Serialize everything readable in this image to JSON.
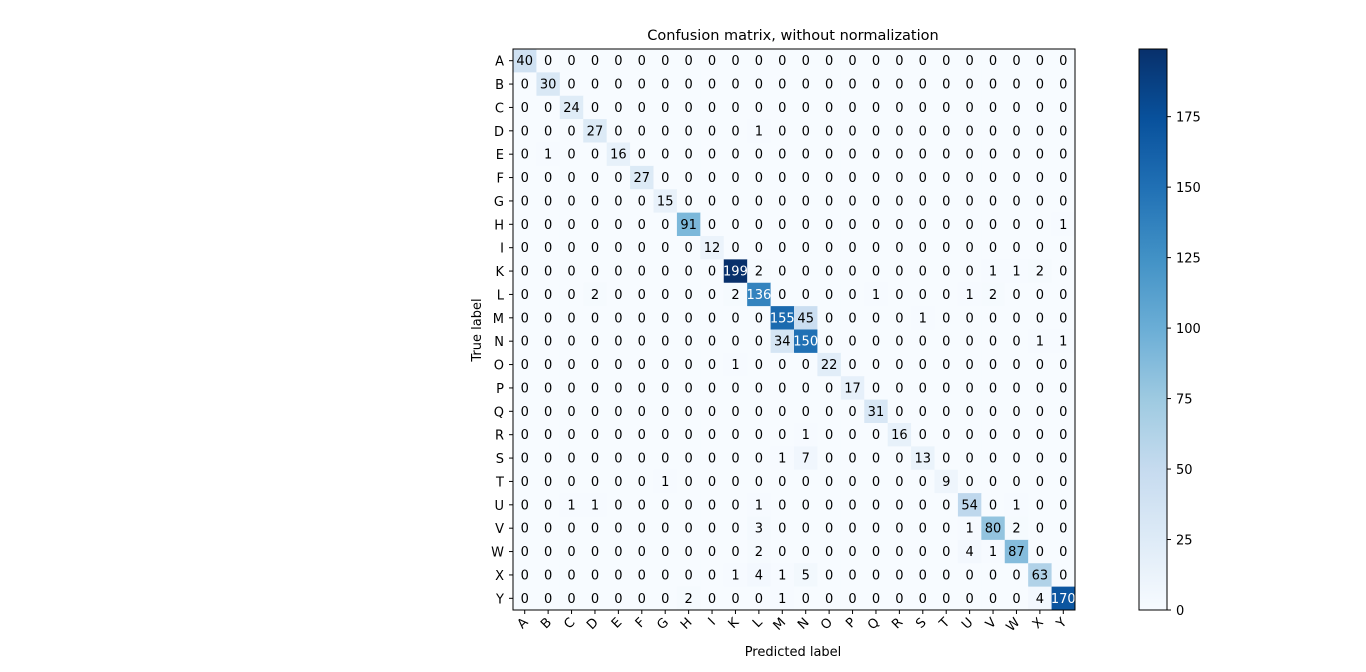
{
  "chart_data": {
    "type": "heatmap",
    "title": "Confusion matrix, without normalization",
    "xlabel": "Predicted label",
    "ylabel": "True label",
    "x_categories": [
      "A",
      "B",
      "C",
      "D",
      "E",
      "F",
      "G",
      "H",
      "I",
      "K",
      "L",
      "M",
      "N",
      "O",
      "P",
      "Q",
      "R",
      "S",
      "T",
      "U",
      "V",
      "W",
      "X",
      "Y"
    ],
    "y_categories": [
      "A",
      "B",
      "C",
      "D",
      "E",
      "F",
      "G",
      "H",
      "I",
      "K",
      "L",
      "M",
      "N",
      "O",
      "P",
      "Q",
      "R",
      "S",
      "T",
      "U",
      "V",
      "W",
      "X",
      "Y"
    ],
    "matrix": [
      [
        40,
        0,
        0,
        0,
        0,
        0,
        0,
        0,
        0,
        0,
        0,
        0,
        0,
        0,
        0,
        0,
        0,
        0,
        0,
        0,
        0,
        0,
        0,
        0
      ],
      [
        0,
        30,
        0,
        0,
        0,
        0,
        0,
        0,
        0,
        0,
        0,
        0,
        0,
        0,
        0,
        0,
        0,
        0,
        0,
        0,
        0,
        0,
        0,
        0
      ],
      [
        0,
        0,
        24,
        0,
        0,
        0,
        0,
        0,
        0,
        0,
        0,
        0,
        0,
        0,
        0,
        0,
        0,
        0,
        0,
        0,
        0,
        0,
        0,
        0
      ],
      [
        0,
        0,
        0,
        27,
        0,
        0,
        0,
        0,
        0,
        0,
        1,
        0,
        0,
        0,
        0,
        0,
        0,
        0,
        0,
        0,
        0,
        0,
        0,
        0
      ],
      [
        0,
        1,
        0,
        0,
        16,
        0,
        0,
        0,
        0,
        0,
        0,
        0,
        0,
        0,
        0,
        0,
        0,
        0,
        0,
        0,
        0,
        0,
        0,
        0
      ],
      [
        0,
        0,
        0,
        0,
        0,
        27,
        0,
        0,
        0,
        0,
        0,
        0,
        0,
        0,
        0,
        0,
        0,
        0,
        0,
        0,
        0,
        0,
        0,
        0
      ],
      [
        0,
        0,
        0,
        0,
        0,
        0,
        15,
        0,
        0,
        0,
        0,
        0,
        0,
        0,
        0,
        0,
        0,
        0,
        0,
        0,
        0,
        0,
        0,
        0
      ],
      [
        0,
        0,
        0,
        0,
        0,
        0,
        0,
        91,
        0,
        0,
        0,
        0,
        0,
        0,
        0,
        0,
        0,
        0,
        0,
        0,
        0,
        0,
        0,
        1
      ],
      [
        0,
        0,
        0,
        0,
        0,
        0,
        0,
        0,
        12,
        0,
        0,
        0,
        0,
        0,
        0,
        0,
        0,
        0,
        0,
        0,
        0,
        0,
        0,
        0
      ],
      [
        0,
        0,
        0,
        0,
        0,
        0,
        0,
        0,
        0,
        199,
        2,
        0,
        0,
        0,
        0,
        0,
        0,
        0,
        0,
        0,
        1,
        1,
        2,
        0
      ],
      [
        0,
        0,
        0,
        2,
        0,
        0,
        0,
        0,
        0,
        2,
        136,
        0,
        0,
        0,
        0,
        1,
        0,
        0,
        0,
        1,
        2,
        0,
        0,
        0
      ],
      [
        0,
        0,
        0,
        0,
        0,
        0,
        0,
        0,
        0,
        0,
        0,
        155,
        45,
        0,
        0,
        0,
        0,
        1,
        0,
        0,
        0,
        0,
        0,
        0
      ],
      [
        0,
        0,
        0,
        0,
        0,
        0,
        0,
        0,
        0,
        0,
        0,
        34,
        150,
        0,
        0,
        0,
        0,
        0,
        0,
        0,
        0,
        0,
        1,
        1
      ],
      [
        0,
        0,
        0,
        0,
        0,
        0,
        0,
        0,
        0,
        1,
        0,
        0,
        0,
        22,
        0,
        0,
        0,
        0,
        0,
        0,
        0,
        0,
        0,
        0
      ],
      [
        0,
        0,
        0,
        0,
        0,
        0,
        0,
        0,
        0,
        0,
        0,
        0,
        0,
        0,
        17,
        0,
        0,
        0,
        0,
        0,
        0,
        0,
        0,
        0
      ],
      [
        0,
        0,
        0,
        0,
        0,
        0,
        0,
        0,
        0,
        0,
        0,
        0,
        0,
        0,
        0,
        31,
        0,
        0,
        0,
        0,
        0,
        0,
        0,
        0
      ],
      [
        0,
        0,
        0,
        0,
        0,
        0,
        0,
        0,
        0,
        0,
        0,
        0,
        1,
        0,
        0,
        0,
        16,
        0,
        0,
        0,
        0,
        0,
        0,
        0
      ],
      [
        0,
        0,
        0,
        0,
        0,
        0,
        0,
        0,
        0,
        0,
        0,
        1,
        7,
        0,
        0,
        0,
        0,
        13,
        0,
        0,
        0,
        0,
        0,
        0
      ],
      [
        0,
        0,
        0,
        0,
        0,
        0,
        1,
        0,
        0,
        0,
        0,
        0,
        0,
        0,
        0,
        0,
        0,
        0,
        9,
        0,
        0,
        0,
        0,
        0
      ],
      [
        0,
        0,
        1,
        1,
        0,
        0,
        0,
        0,
        0,
        0,
        1,
        0,
        0,
        0,
        0,
        0,
        0,
        0,
        0,
        54,
        0,
        1,
        0,
        0
      ],
      [
        0,
        0,
        0,
        0,
        0,
        0,
        0,
        0,
        0,
        0,
        3,
        0,
        0,
        0,
        0,
        0,
        0,
        0,
        0,
        1,
        80,
        2,
        0,
        0
      ],
      [
        0,
        0,
        0,
        0,
        0,
        0,
        0,
        0,
        0,
        0,
        2,
        0,
        0,
        0,
        0,
        0,
        0,
        0,
        0,
        4,
        1,
        87,
        0,
        0
      ],
      [
        0,
        0,
        0,
        0,
        0,
        0,
        0,
        0,
        0,
        1,
        4,
        1,
        5,
        0,
        0,
        0,
        0,
        0,
        0,
        0,
        0,
        0,
        63,
        0
      ],
      [
        0,
        0,
        0,
        0,
        0,
        0,
        0,
        2,
        0,
        0,
        0,
        1,
        0,
        0,
        0,
        0,
        0,
        0,
        0,
        0,
        0,
        0,
        4,
        170
      ]
    ],
    "vmin": 0,
    "vmax": 199,
    "colormap": "Blues",
    "colorbar_ticks": [
      0,
      25,
      50,
      75,
      100,
      125,
      150,
      175
    ],
    "grid": false,
    "legend": "colorbar-right"
  }
}
